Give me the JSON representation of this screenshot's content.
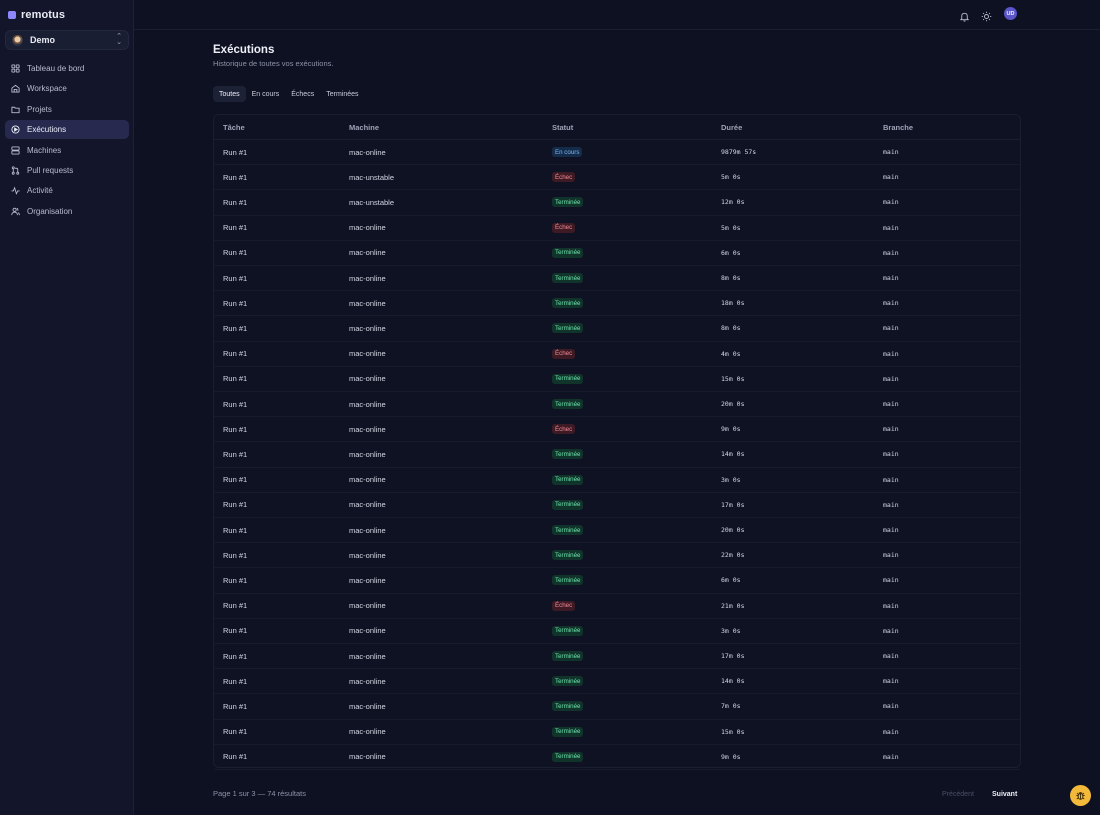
{
  "brand": {
    "name": "remotus"
  },
  "workspace": {
    "name": "Demo"
  },
  "sidebar": {
    "items": [
      {
        "label": "Tableau de bord",
        "icon": "dashboard-icon"
      },
      {
        "label": "Workspace",
        "icon": "workspace-icon"
      },
      {
        "label": "Projets",
        "icon": "folder-icon"
      },
      {
        "label": "Exécutions",
        "icon": "play-icon",
        "active": true
      },
      {
        "label": "Machines",
        "icon": "server-icon"
      },
      {
        "label": "Pull requests",
        "icon": "pull-request-icon"
      },
      {
        "label": "Activité",
        "icon": "activity-icon"
      },
      {
        "label": "Organisation",
        "icon": "users-icon"
      }
    ]
  },
  "topbar": {
    "user_initials": "UD"
  },
  "page": {
    "title": "Exécutions",
    "subtitle": "Historique de toutes vos exécutions."
  },
  "tabs": [
    "Toutes",
    "En cours",
    "Échecs",
    "Terminées"
  ],
  "table": {
    "headers": [
      "Tâche",
      "Machine",
      "Statut",
      "Durée",
      "Branche"
    ],
    "rows": [
      {
        "task": "Run #1",
        "machine": "mac-online",
        "status": "En cours",
        "kind": "running",
        "duration": "9879m 57s",
        "branch": "main"
      },
      {
        "task": "Run #1",
        "machine": "mac-unstable",
        "status": "Échec",
        "kind": "fail",
        "duration": "5m 0s",
        "branch": "main"
      },
      {
        "task": "Run #1",
        "machine": "mac-unstable",
        "status": "Terminée",
        "kind": "done",
        "duration": "12m 0s",
        "branch": "main"
      },
      {
        "task": "Run #1",
        "machine": "mac-online",
        "status": "Échec",
        "kind": "fail",
        "duration": "5m 0s",
        "branch": "main"
      },
      {
        "task": "Run #1",
        "machine": "mac-online",
        "status": "Terminée",
        "kind": "done",
        "duration": "6m 0s",
        "branch": "main"
      },
      {
        "task": "Run #1",
        "machine": "mac-online",
        "status": "Terminée",
        "kind": "done",
        "duration": "8m 0s",
        "branch": "main"
      },
      {
        "task": "Run #1",
        "machine": "mac-online",
        "status": "Terminée",
        "kind": "done",
        "duration": "18m 0s",
        "branch": "main"
      },
      {
        "task": "Run #1",
        "machine": "mac-online",
        "status": "Terminée",
        "kind": "done",
        "duration": "8m 0s",
        "branch": "main"
      },
      {
        "task": "Run #1",
        "machine": "mac-online",
        "status": "Échec",
        "kind": "fail",
        "duration": "4m 0s",
        "branch": "main"
      },
      {
        "task": "Run #1",
        "machine": "mac-online",
        "status": "Terminée",
        "kind": "done",
        "duration": "15m 0s",
        "branch": "main"
      },
      {
        "task": "Run #1",
        "machine": "mac-online",
        "status": "Terminée",
        "kind": "done",
        "duration": "20m 0s",
        "branch": "main"
      },
      {
        "task": "Run #1",
        "machine": "mac-online",
        "status": "Échec",
        "kind": "fail",
        "duration": "9m 0s",
        "branch": "main"
      },
      {
        "task": "Run #1",
        "machine": "mac-online",
        "status": "Terminée",
        "kind": "done",
        "duration": "14m 0s",
        "branch": "main"
      },
      {
        "task": "Run #1",
        "machine": "mac-online",
        "status": "Terminée",
        "kind": "done",
        "duration": "3m 0s",
        "branch": "main"
      },
      {
        "task": "Run #1",
        "machine": "mac-online",
        "status": "Terminée",
        "kind": "done",
        "duration": "17m 0s",
        "branch": "main"
      },
      {
        "task": "Run #1",
        "machine": "mac-online",
        "status": "Terminée",
        "kind": "done",
        "duration": "20m 0s",
        "branch": "main"
      },
      {
        "task": "Run #1",
        "machine": "mac-online",
        "status": "Terminée",
        "kind": "done",
        "duration": "22m 0s",
        "branch": "main"
      },
      {
        "task": "Run #1",
        "machine": "mac-online",
        "status": "Terminée",
        "kind": "done",
        "duration": "6m 0s",
        "branch": "main"
      },
      {
        "task": "Run #1",
        "machine": "mac-online",
        "status": "Échec",
        "kind": "fail",
        "duration": "21m 0s",
        "branch": "main"
      },
      {
        "task": "Run #1",
        "machine": "mac-online",
        "status": "Terminée",
        "kind": "done",
        "duration": "3m 0s",
        "branch": "main"
      },
      {
        "task": "Run #1",
        "machine": "mac-online",
        "status": "Terminée",
        "kind": "done",
        "duration": "17m 0s",
        "branch": "main"
      },
      {
        "task": "Run #1",
        "machine": "mac-online",
        "status": "Terminée",
        "kind": "done",
        "duration": "14m 0s",
        "branch": "main"
      },
      {
        "task": "Run #1",
        "machine": "mac-online",
        "status": "Terminée",
        "kind": "done",
        "duration": "7m 0s",
        "branch": "main"
      },
      {
        "task": "Run #1",
        "machine": "mac-online",
        "status": "Terminée",
        "kind": "done",
        "duration": "15m 0s",
        "branch": "main"
      },
      {
        "task": "Run #1",
        "machine": "mac-online",
        "status": "Terminée",
        "kind": "done",
        "duration": "9m 0s",
        "branch": "main"
      }
    ]
  },
  "pagination": {
    "summary": "Page 1 sur 3 — 74 résultats",
    "prev_label": "Précédent",
    "next_label": "Suivant"
  },
  "colors": {
    "accent": "#8e86ff",
    "success": "#6ee7b0",
    "failure": "#f28a96",
    "running": "#7cb8f2",
    "fab": "#f2b93b"
  }
}
